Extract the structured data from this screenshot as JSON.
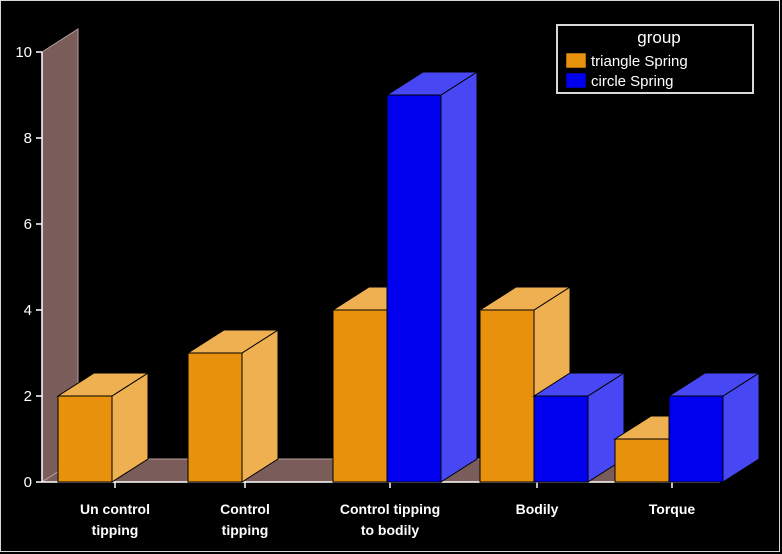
{
  "chart_data": {
    "type": "bar",
    "categories": [
      [
        "Un control",
        "tipping"
      ],
      [
        "Control",
        "tipping"
      ],
      [
        "Control tipping",
        "to bodily"
      ],
      [
        "Bodily"
      ],
      [
        "Torque"
      ]
    ],
    "series": [
      {
        "name": "triangle Spring",
        "values": [
          2,
          3,
          4,
          4,
          1
        ],
        "color": "#e8910c"
      },
      {
        "name": "circle Spring",
        "values": [
          0,
          0,
          9,
          2,
          2
        ],
        "color": "#0000ee"
      }
    ],
    "title": "",
    "xlabel": "",
    "ylabel": "",
    "ylim": [
      0,
      10
    ],
    "yticks": [
      0,
      2,
      4,
      6,
      8,
      10
    ],
    "legend": {
      "title": "group",
      "placement": "top-right"
    },
    "grid": false,
    "style": "3d",
    "colors": {
      "background": "#000000",
      "wall": "#7a5c5a"
    }
  }
}
